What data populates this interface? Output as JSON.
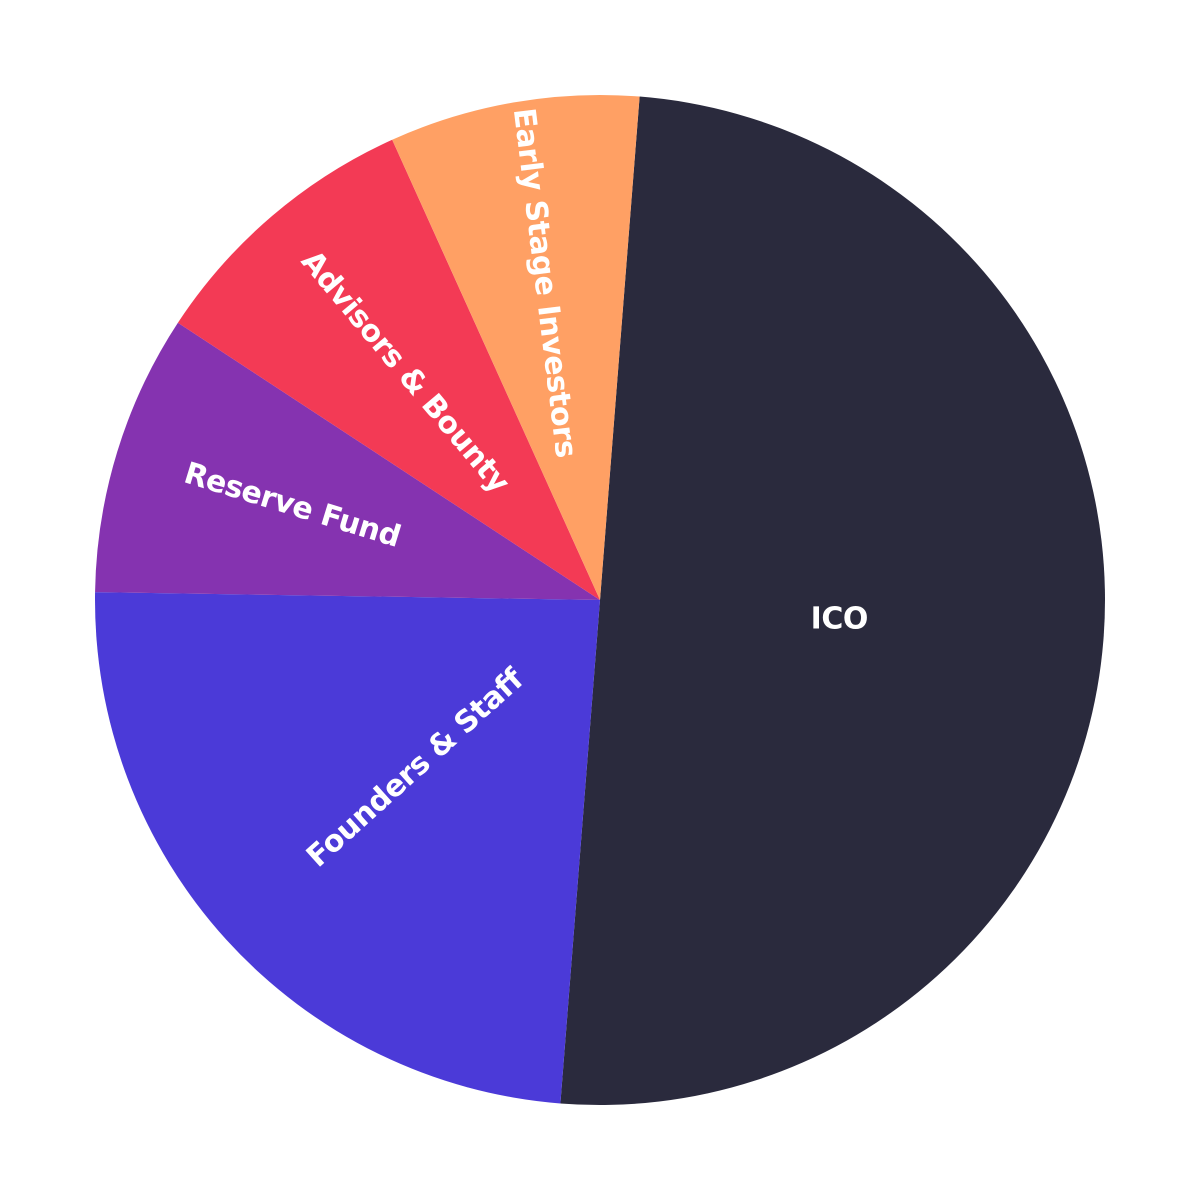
{
  "chart_data": {
    "type": "pie",
    "title": "",
    "slices": [
      {
        "label": "ICO",
        "value": 50,
        "color": "#2a2a3d"
      },
      {
        "label": "Founders & Staff",
        "value": 24,
        "color": "#4b3ad8"
      },
      {
        "label": "Reserve Fund",
        "value": 9,
        "color": "#8533b0"
      },
      {
        "label": "Advisors & Bounty",
        "value": 9,
        "color": "#f33a55"
      },
      {
        "label": "Early Stage Investors",
        "value": 8,
        "color": "#ffa064"
      }
    ],
    "legend": "none",
    "labels_inside": true
  }
}
